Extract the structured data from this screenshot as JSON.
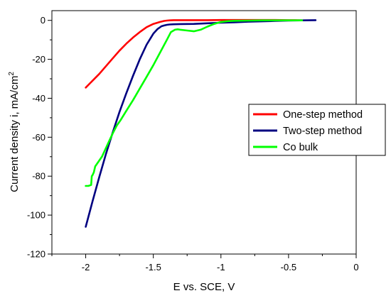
{
  "chart_data": {
    "type": "line",
    "xlabel": "E vs. SCE, V",
    "ylabel_main": "Current density i, mA/cm",
    "ylabel_sup": "2",
    "xlim": [
      -2.25,
      0
    ],
    "ylim": [
      -120,
      5
    ],
    "x_ticks": [
      -2,
      -1.5,
      -1,
      -0.5,
      0
    ],
    "x_tick_labels": [
      "-2",
      "-1.5",
      "-1",
      "-0.5",
      "0"
    ],
    "y_ticks": [
      0,
      -20,
      -40,
      -60,
      -80,
      -100,
      -120
    ],
    "y_tick_labels": [
      "0",
      "-20",
      "-40",
      "-60",
      "-80",
      "-100",
      "-120"
    ],
    "grid": false,
    "legend_position": "right",
    "series": [
      {
        "name": "One-step method",
        "color": "#ff0000",
        "x": [
          -2.0,
          -1.95,
          -1.9,
          -1.85,
          -1.8,
          -1.75,
          -1.7,
          -1.65,
          -1.6,
          -1.55,
          -1.5,
          -1.45,
          -1.42,
          -1.4,
          -1.38,
          -1.35,
          -1.3,
          -1.2,
          -1.1,
          -1.0,
          -0.9,
          -0.8,
          -0.7,
          -0.6,
          -0.5,
          -0.45,
          -0.4
        ],
        "y": [
          -34.5,
          -31.0,
          -27.5,
          -23.5,
          -19.5,
          -15.5,
          -12.0,
          -8.8,
          -6.0,
          -3.5,
          -1.8,
          -0.8,
          -0.3,
          -0.1,
          0.0,
          0.1,
          0.1,
          0.1,
          0.1,
          0.2,
          0.2,
          0.2,
          0.2,
          0.2,
          0.1,
          0.1,
          0.0
        ]
      },
      {
        "name": "Two-step method",
        "color": "#000080",
        "x": [
          -2.0,
          -1.95,
          -1.9,
          -1.85,
          -1.8,
          -1.75,
          -1.7,
          -1.65,
          -1.6,
          -1.55,
          -1.5,
          -1.47,
          -1.44,
          -1.42,
          -1.4,
          -1.38,
          -1.35,
          -1.3,
          -1.2,
          -1.1,
          -1.0,
          -0.9,
          -0.8,
          -0.7,
          -0.6,
          -0.5,
          -0.4,
          -0.3
        ],
        "y": [
          -106.0,
          -93.0,
          -80.5,
          -68.5,
          -57.5,
          -47.0,
          -37.5,
          -28.5,
          -20.0,
          -12.5,
          -6.8,
          -4.5,
          -3.0,
          -2.6,
          -2.3,
          -2.1,
          -2.0,
          -1.9,
          -1.8,
          -1.5,
          -1.2,
          -1.0,
          -0.7,
          -0.5,
          -0.3,
          -0.1,
          0.0,
          0.1
        ]
      },
      {
        "name": "Co bulk",
        "color": "#00ff00",
        "x": [
          -2.0,
          -1.98,
          -1.96,
          -1.955,
          -1.95,
          -1.94,
          -1.93,
          -1.92,
          -1.9,
          -1.88,
          -1.86,
          -1.84,
          -1.82,
          -1.8,
          -1.77,
          -1.74,
          -1.7,
          -1.65,
          -1.6,
          -1.55,
          -1.5,
          -1.45,
          -1.4,
          -1.37,
          -1.34,
          -1.32,
          -1.3,
          -1.25,
          -1.2,
          -1.15,
          -1.1,
          -1.05,
          -1.0,
          -0.95,
          -0.9,
          -0.8,
          -0.7,
          -0.6,
          -0.5,
          -0.4
        ],
        "y": [
          -85.0,
          -85.0,
          -84.5,
          -80.0,
          -79.5,
          -78.0,
          -75.0,
          -74.0,
          -72.0,
          -70.0,
          -67.0,
          -64.0,
          -61.0,
          -58.0,
          -54.0,
          -51.0,
          -46.5,
          -41.0,
          -35.0,
          -29.0,
          -23.0,
          -16.5,
          -10.0,
          -6.0,
          -4.8,
          -4.6,
          -4.8,
          -5.2,
          -5.6,
          -4.8,
          -3.2,
          -1.8,
          -0.8,
          -0.4,
          -0.2,
          -0.1,
          0.0,
          0.0,
          0.0,
          0.0
        ]
      }
    ]
  }
}
